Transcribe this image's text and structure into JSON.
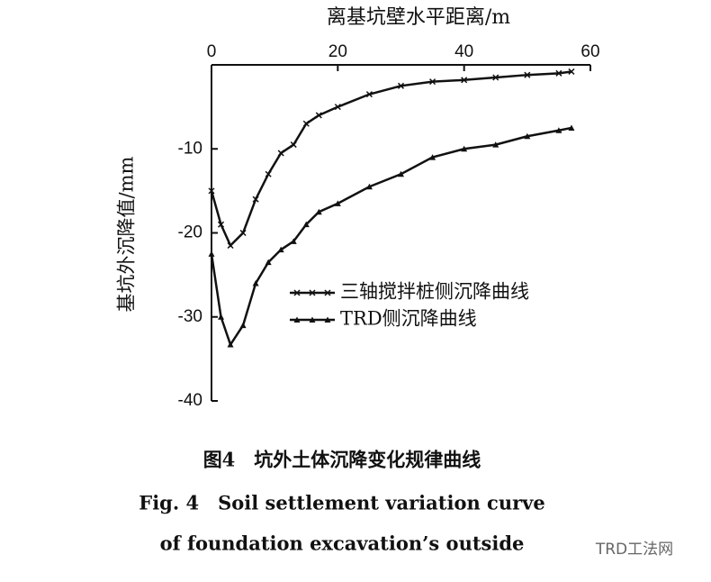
{
  "chart_data": {
    "type": "line",
    "x_label": "离基坑壁水平距离/m",
    "y_label": "基坑外沉降值/mm",
    "caption_cn": "图4　坑外土体沉降变化规律曲线",
    "caption_en_1": "Fig. 4　Soil settlement variation curve",
    "caption_en_2": "of foundation excavation’s outside",
    "watermark": "TRD工法网",
    "x": [
      0,
      1.5,
      3,
      5,
      7,
      9,
      11,
      13,
      15,
      17,
      20,
      25,
      30,
      35,
      40,
      45,
      50,
      55,
      57
    ],
    "series": [
      {
        "name": "三轴搅拌桩侧沉降曲线",
        "color": "#111111",
        "marker": "x",
        "values": [
          -15,
          -19,
          -21.5,
          -20,
          -16,
          -13,
          -10.5,
          -9.5,
          -7,
          -6,
          -5,
          -3.5,
          -2.5,
          -2,
          -1.8,
          -1.5,
          -1.2,
          -1,
          -0.8
        ]
      },
      {
        "name": "TRD侧沉降曲线",
        "color": "#111111",
        "marker": "triangle",
        "values": [
          -22.5,
          -30,
          -33.3,
          -31,
          -26,
          -23.5,
          -22,
          -21,
          -19,
          -17.5,
          -16.5,
          -14.5,
          -13,
          -11,
          -10,
          -9.5,
          -8.5,
          -7.8,
          -7.5
        ]
      }
    ],
    "xlim": [
      0,
      60
    ],
    "xticks": [
      0,
      20,
      40,
      60
    ],
    "ylim": [
      -40,
      0
    ],
    "yticks": [
      -10,
      -20,
      -30,
      -40
    ]
  }
}
